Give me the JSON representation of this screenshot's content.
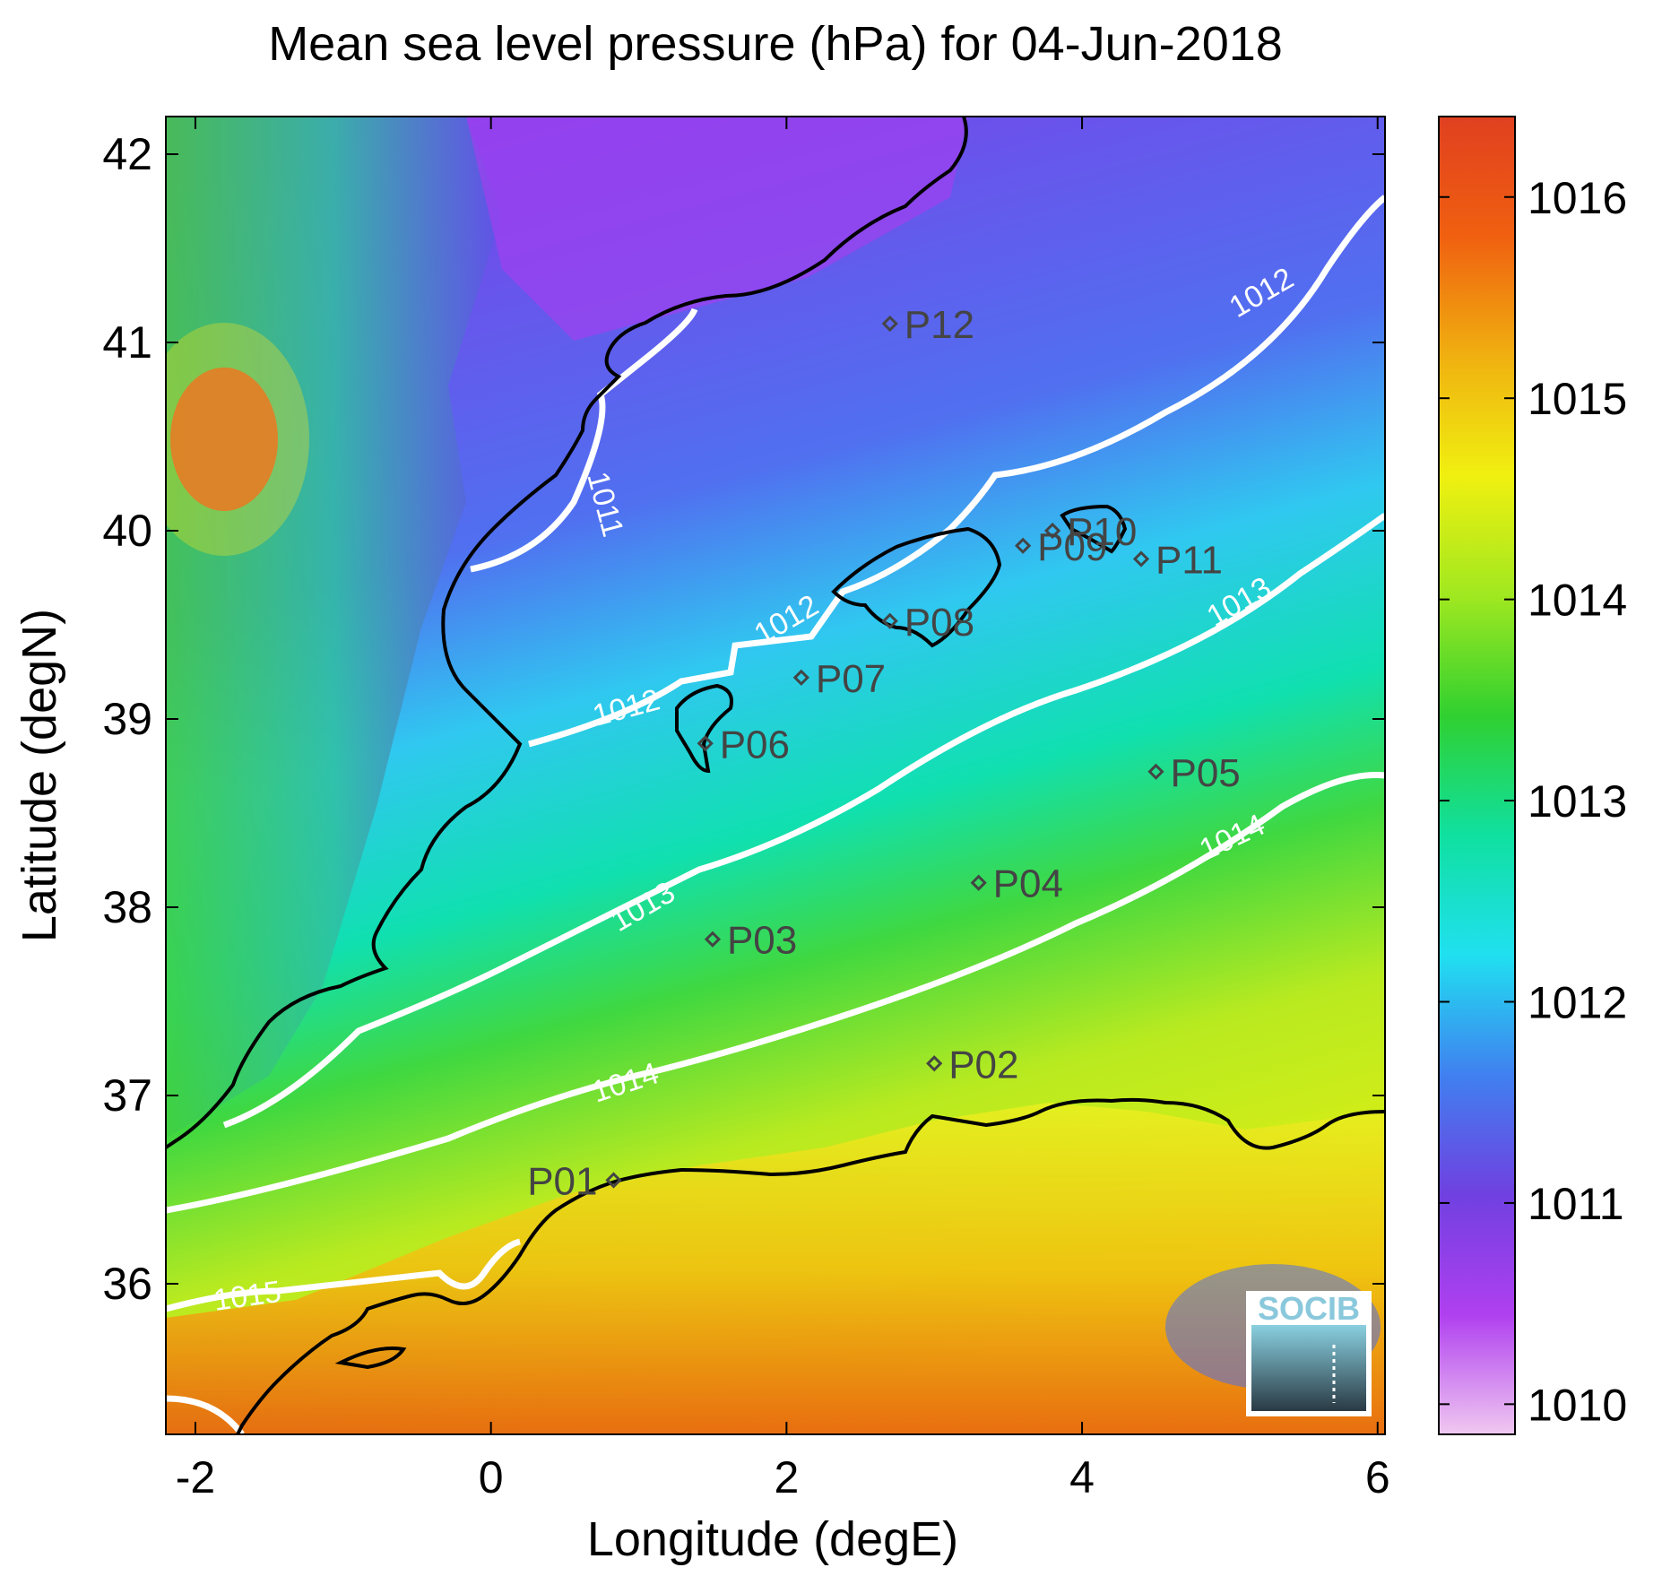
{
  "title": "Mean sea level pressure (hPa) for 04-Jun-2018",
  "logo_text": "SOCIB",
  "chart_data": {
    "type": "heatmap",
    "title": "Mean sea level pressure (hPa) for 04-Jun-2018",
    "xlabel": "Longitude (degE)",
    "ylabel": "Latitude (degN)",
    "xlim": [
      -2.2,
      6.05
    ],
    "ylim": [
      35.2,
      42.2
    ],
    "xticks": [
      -2,
      0,
      2,
      4,
      6
    ],
    "yticks": [
      36,
      37,
      38,
      39,
      40,
      41,
      42
    ],
    "colorbar": {
      "range": [
        1009.85,
        1016.4
      ],
      "ticks": [
        1010,
        1011,
        1012,
        1013,
        1014,
        1015,
        1016
      ],
      "colors": [
        "#f0c8f0",
        "#b040f0",
        "#7040e0",
        "#4080f0",
        "#20e0f0",
        "#10e0a0",
        "#30d030",
        "#a0e820",
        "#f0f010",
        "#f0b010",
        "#f06010",
        "#e04020"
      ]
    },
    "contours": [
      {
        "level": 1011,
        "label": "1011"
      },
      {
        "level": 1012,
        "label": "1012"
      },
      {
        "level": 1013,
        "label": "1013"
      },
      {
        "level": 1014,
        "label": "1014"
      },
      {
        "level": 1015,
        "label": "1015"
      }
    ],
    "stations": [
      {
        "name": "P01",
        "lon": 0.83,
        "lat": 36.55
      },
      {
        "name": "P02",
        "lon": 3.0,
        "lat": 37.17
      },
      {
        "name": "P03",
        "lon": 1.5,
        "lat": 37.83
      },
      {
        "name": "P04",
        "lon": 3.3,
        "lat": 38.13
      },
      {
        "name": "P05",
        "lon": 4.5,
        "lat": 38.72
      },
      {
        "name": "P06",
        "lon": 1.45,
        "lat": 38.87
      },
      {
        "name": "P07",
        "lon": 2.1,
        "lat": 39.22
      },
      {
        "name": "P08",
        "lon": 2.7,
        "lat": 39.52
      },
      {
        "name": "P09",
        "lon": 3.6,
        "lat": 39.92
      },
      {
        "name": "P10",
        "lon": 3.8,
        "lat": 40.0
      },
      {
        "name": "P11",
        "lon": 4.4,
        "lat": 39.85
      },
      {
        "name": "P12",
        "lon": 2.7,
        "lat": 41.1
      }
    ]
  }
}
